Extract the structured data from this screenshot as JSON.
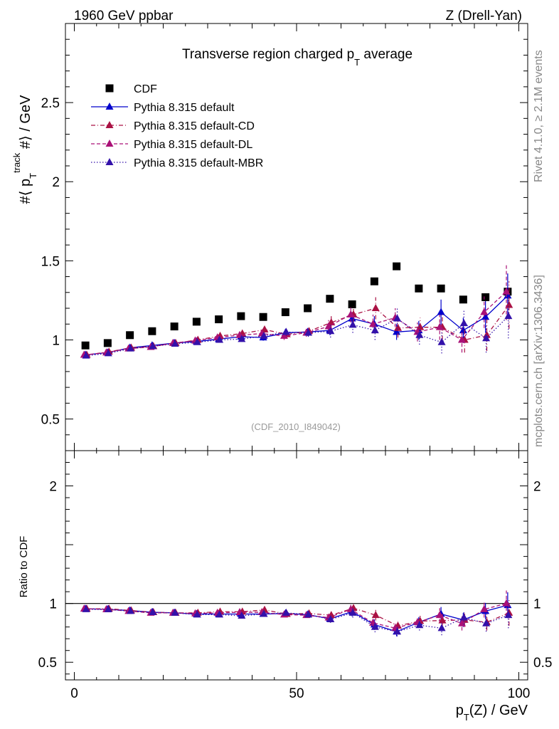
{
  "header": {
    "beam": "1960 GeV ppbar",
    "process": "Z (Drell-Yan)"
  },
  "side_labels": {
    "rivet": "Rivet 4.1.0, ≥ 2.1M events",
    "mcplots": "mcplots.cern.ch [arXiv:1306.3436]"
  },
  "colors": {
    "cdf": "#000000",
    "default": "#0000cc",
    "cd": "#aa1144",
    "dl": "#aa1177",
    "mbr": "#3311aa"
  },
  "chart_data": {
    "type": "scatter",
    "title": "Transverse region charged p_T average",
    "ylabel": "#⟨ p_T^track #⟩ / GeV",
    "xlabel": "p_T(Z) / GeV",
    "watermark": "(CDF_2010_I849042)",
    "xlim": [
      -2,
      102
    ],
    "ylim": [
      0.3,
      3.0
    ],
    "x_ticks": [
      "0",
      "50",
      "100"
    ],
    "y_ticks": [
      "0.5",
      "1",
      "1.5",
      "2",
      "2.5"
    ],
    "x": [
      2.5,
      7.5,
      12.5,
      17.5,
      22.5,
      27.5,
      32.5,
      37.5,
      42.5,
      47.5,
      52.5,
      57.5,
      62.5,
      67.5,
      72.5,
      77.5,
      82.5,
      87.5,
      92.5,
      97.5
    ],
    "series": [
      {
        "name": "CDF",
        "key": "cdf",
        "style": "markers",
        "values": [
          0.965,
          0.98,
          1.03,
          1.055,
          1.085,
          1.115,
          1.13,
          1.15,
          1.145,
          1.175,
          1.2,
          1.26,
          1.225,
          1.37,
          1.465,
          1.325,
          1.325,
          1.255,
          1.27,
          1.305
        ],
        "errors": [
          0.01,
          0.01,
          0.01,
          0.01,
          0.01,
          0.01,
          0.01,
          0.01,
          0.01,
          0.01,
          0.01,
          0.01,
          0.01,
          0.01,
          0.01,
          0.01,
          0.01,
          0.01,
          0.01,
          0.01
        ]
      },
      {
        "name": "Pythia 8.315 default",
        "key": "default",
        "style": "solid",
        "values": [
          0.905,
          0.92,
          0.95,
          0.965,
          0.98,
          0.99,
          1.005,
          1.02,
          1.015,
          1.045,
          1.05,
          1.06,
          1.135,
          1.1,
          1.05,
          1.06,
          1.175,
          1.06,
          1.145,
          1.28
        ],
        "errors": [
          0.01,
          0.01,
          0.01,
          0.01,
          0.01,
          0.01,
          0.015,
          0.015,
          0.02,
          0.025,
          0.025,
          0.03,
          0.04,
          0.05,
          0.05,
          0.06,
          0.08,
          0.08,
          0.1,
          0.14
        ]
      },
      {
        "name": "Pythia 8.315 default-CD",
        "key": "cd",
        "style": "dashdot",
        "values": [
          0.905,
          0.925,
          0.95,
          0.96,
          0.98,
          1.0,
          1.025,
          1.04,
          1.065,
          1.035,
          1.055,
          1.11,
          1.16,
          1.2,
          1.075,
          1.08,
          1.08,
          1.0,
          1.03,
          1.22
        ],
        "errors": [
          0.01,
          0.01,
          0.01,
          0.01,
          0.01,
          0.01,
          0.015,
          0.015,
          0.02,
          0.025,
          0.025,
          0.04,
          0.05,
          0.07,
          0.06,
          0.06,
          0.08,
          0.08,
          0.1,
          0.15
        ]
      },
      {
        "name": "Pythia 8.315 default-DL",
        "key": "dl",
        "style": "dashed",
        "values": [
          0.905,
          0.92,
          0.945,
          0.955,
          0.98,
          0.995,
          1.015,
          1.03,
          1.04,
          1.025,
          1.045,
          1.085,
          1.16,
          1.1,
          1.14,
          1.05,
          1.08,
          1.0,
          1.175,
          1.305
        ],
        "errors": [
          0.01,
          0.01,
          0.01,
          0.01,
          0.01,
          0.01,
          0.015,
          0.015,
          0.02,
          0.025,
          0.025,
          0.04,
          0.05,
          0.06,
          0.06,
          0.06,
          0.08,
          0.08,
          0.1,
          0.18
        ]
      },
      {
        "name": "Pythia 8.315 default-MBR",
        "key": "mbr",
        "style": "dotted",
        "values": [
          0.9,
          0.915,
          0.945,
          0.96,
          0.975,
          0.985,
          1.0,
          1.005,
          1.025,
          1.05,
          1.045,
          1.055,
          1.095,
          1.06,
          1.135,
          1.03,
          0.985,
          1.105,
          1.01,
          1.15
        ],
        "errors": [
          0.01,
          0.01,
          0.01,
          0.01,
          0.01,
          0.01,
          0.015,
          0.015,
          0.02,
          0.025,
          0.025,
          0.04,
          0.05,
          0.06,
          0.07,
          0.06,
          0.07,
          0.09,
          0.09,
          0.14
        ]
      }
    ],
    "ratio": {
      "ylabel": "Ratio to CDF",
      "ylim": [
        0.35,
        2.3
      ],
      "y_ticks": [
        "0.5",
        "1",
        "2"
      ],
      "series": [
        {
          "key": "default",
          "values": [
            0.955,
            0.95,
            0.94,
            0.925,
            0.92,
            0.91,
            0.91,
            0.91,
            0.91,
            0.915,
            0.905,
            0.87,
            0.93,
            0.82,
            0.76,
            0.84,
            0.91,
            0.86,
            0.935,
            0.985
          ]
        },
        {
          "key": "cd",
          "values": [
            0.955,
            0.955,
            0.94,
            0.925,
            0.92,
            0.92,
            0.93,
            0.93,
            0.945,
            0.91,
            0.915,
            0.9,
            0.96,
            0.9,
            0.81,
            0.85,
            0.855,
            0.86,
            0.84,
            0.92
          ]
        },
        {
          "key": "dl",
          "values": [
            0.955,
            0.95,
            0.935,
            0.92,
            0.92,
            0.915,
            0.92,
            0.925,
            0.925,
            0.905,
            0.9,
            0.88,
            0.95,
            0.835,
            0.79,
            0.84,
            0.9,
            0.83,
            0.95,
            1.0
          ]
        },
        {
          "key": "mbr",
          "values": [
            0.95,
            0.95,
            0.935,
            0.925,
            0.92,
            0.905,
            0.905,
            0.895,
            0.91,
            0.92,
            0.905,
            0.865,
            0.92,
            0.8,
            0.76,
            0.815,
            0.79,
            0.88,
            0.83,
            0.9
          ]
        }
      ]
    }
  }
}
